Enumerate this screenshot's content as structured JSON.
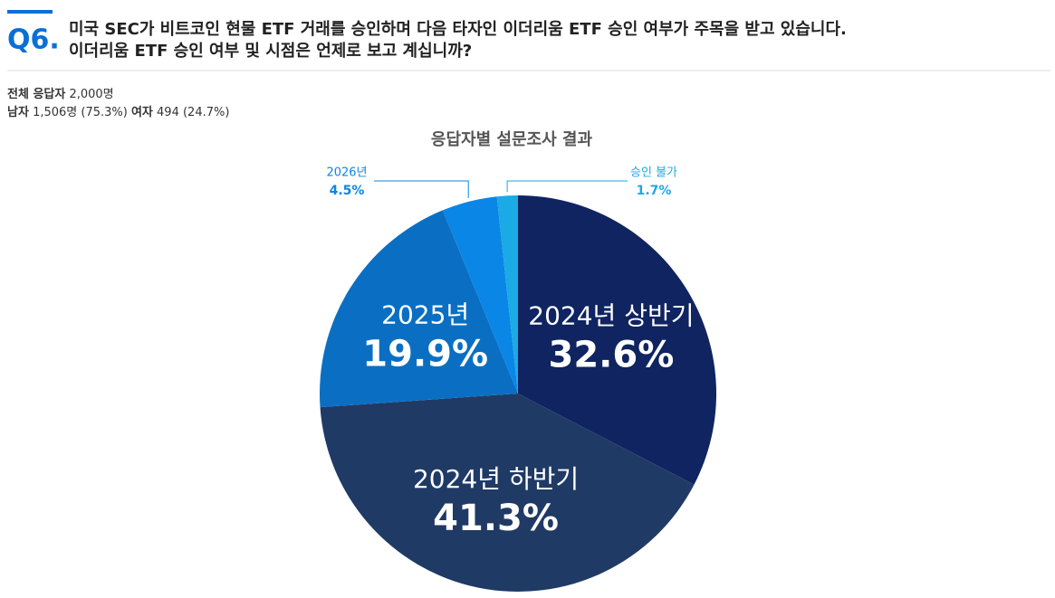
{
  "header": {
    "number": "Q6.",
    "question_lines": [
      "미국 SEC가 비트코인 현물 ETF 거래를 승인하며 다음 타자인 이더리움 ETF 승인 여부가 주목을 받고 있습니다.",
      "이더리움 ETF 승인 여부 및 시점은 언제로 보고 계십니까?"
    ]
  },
  "respondents": [
    [
      {
        "label": "전체 응답자",
        "text": "2,000명"
      }
    ],
    [
      {
        "label": "남자",
        "text": "1,506명 (75.3%)"
      },
      {
        "label": "여자",
        "text": "494 (24.7%)"
      }
    ]
  ],
  "chart_data": {
    "type": "pie",
    "title": "응답자별 설문조사 결과",
    "categories": [
      "2024년 상반기",
      "2024년 하반기",
      "2025년",
      "2026년",
      "승인 불가"
    ],
    "values": [
      32.6,
      41.3,
      19.9,
      4.5,
      1.7
    ],
    "value_labels": [
      "32.6%",
      "41.3%",
      "19.9%",
      "4.5%",
      "1.7%"
    ],
    "colors": [
      "#0f2460",
      "#203a66",
      "#0a6fc2",
      "#0a86e6",
      "#1aaae6"
    ]
  }
}
